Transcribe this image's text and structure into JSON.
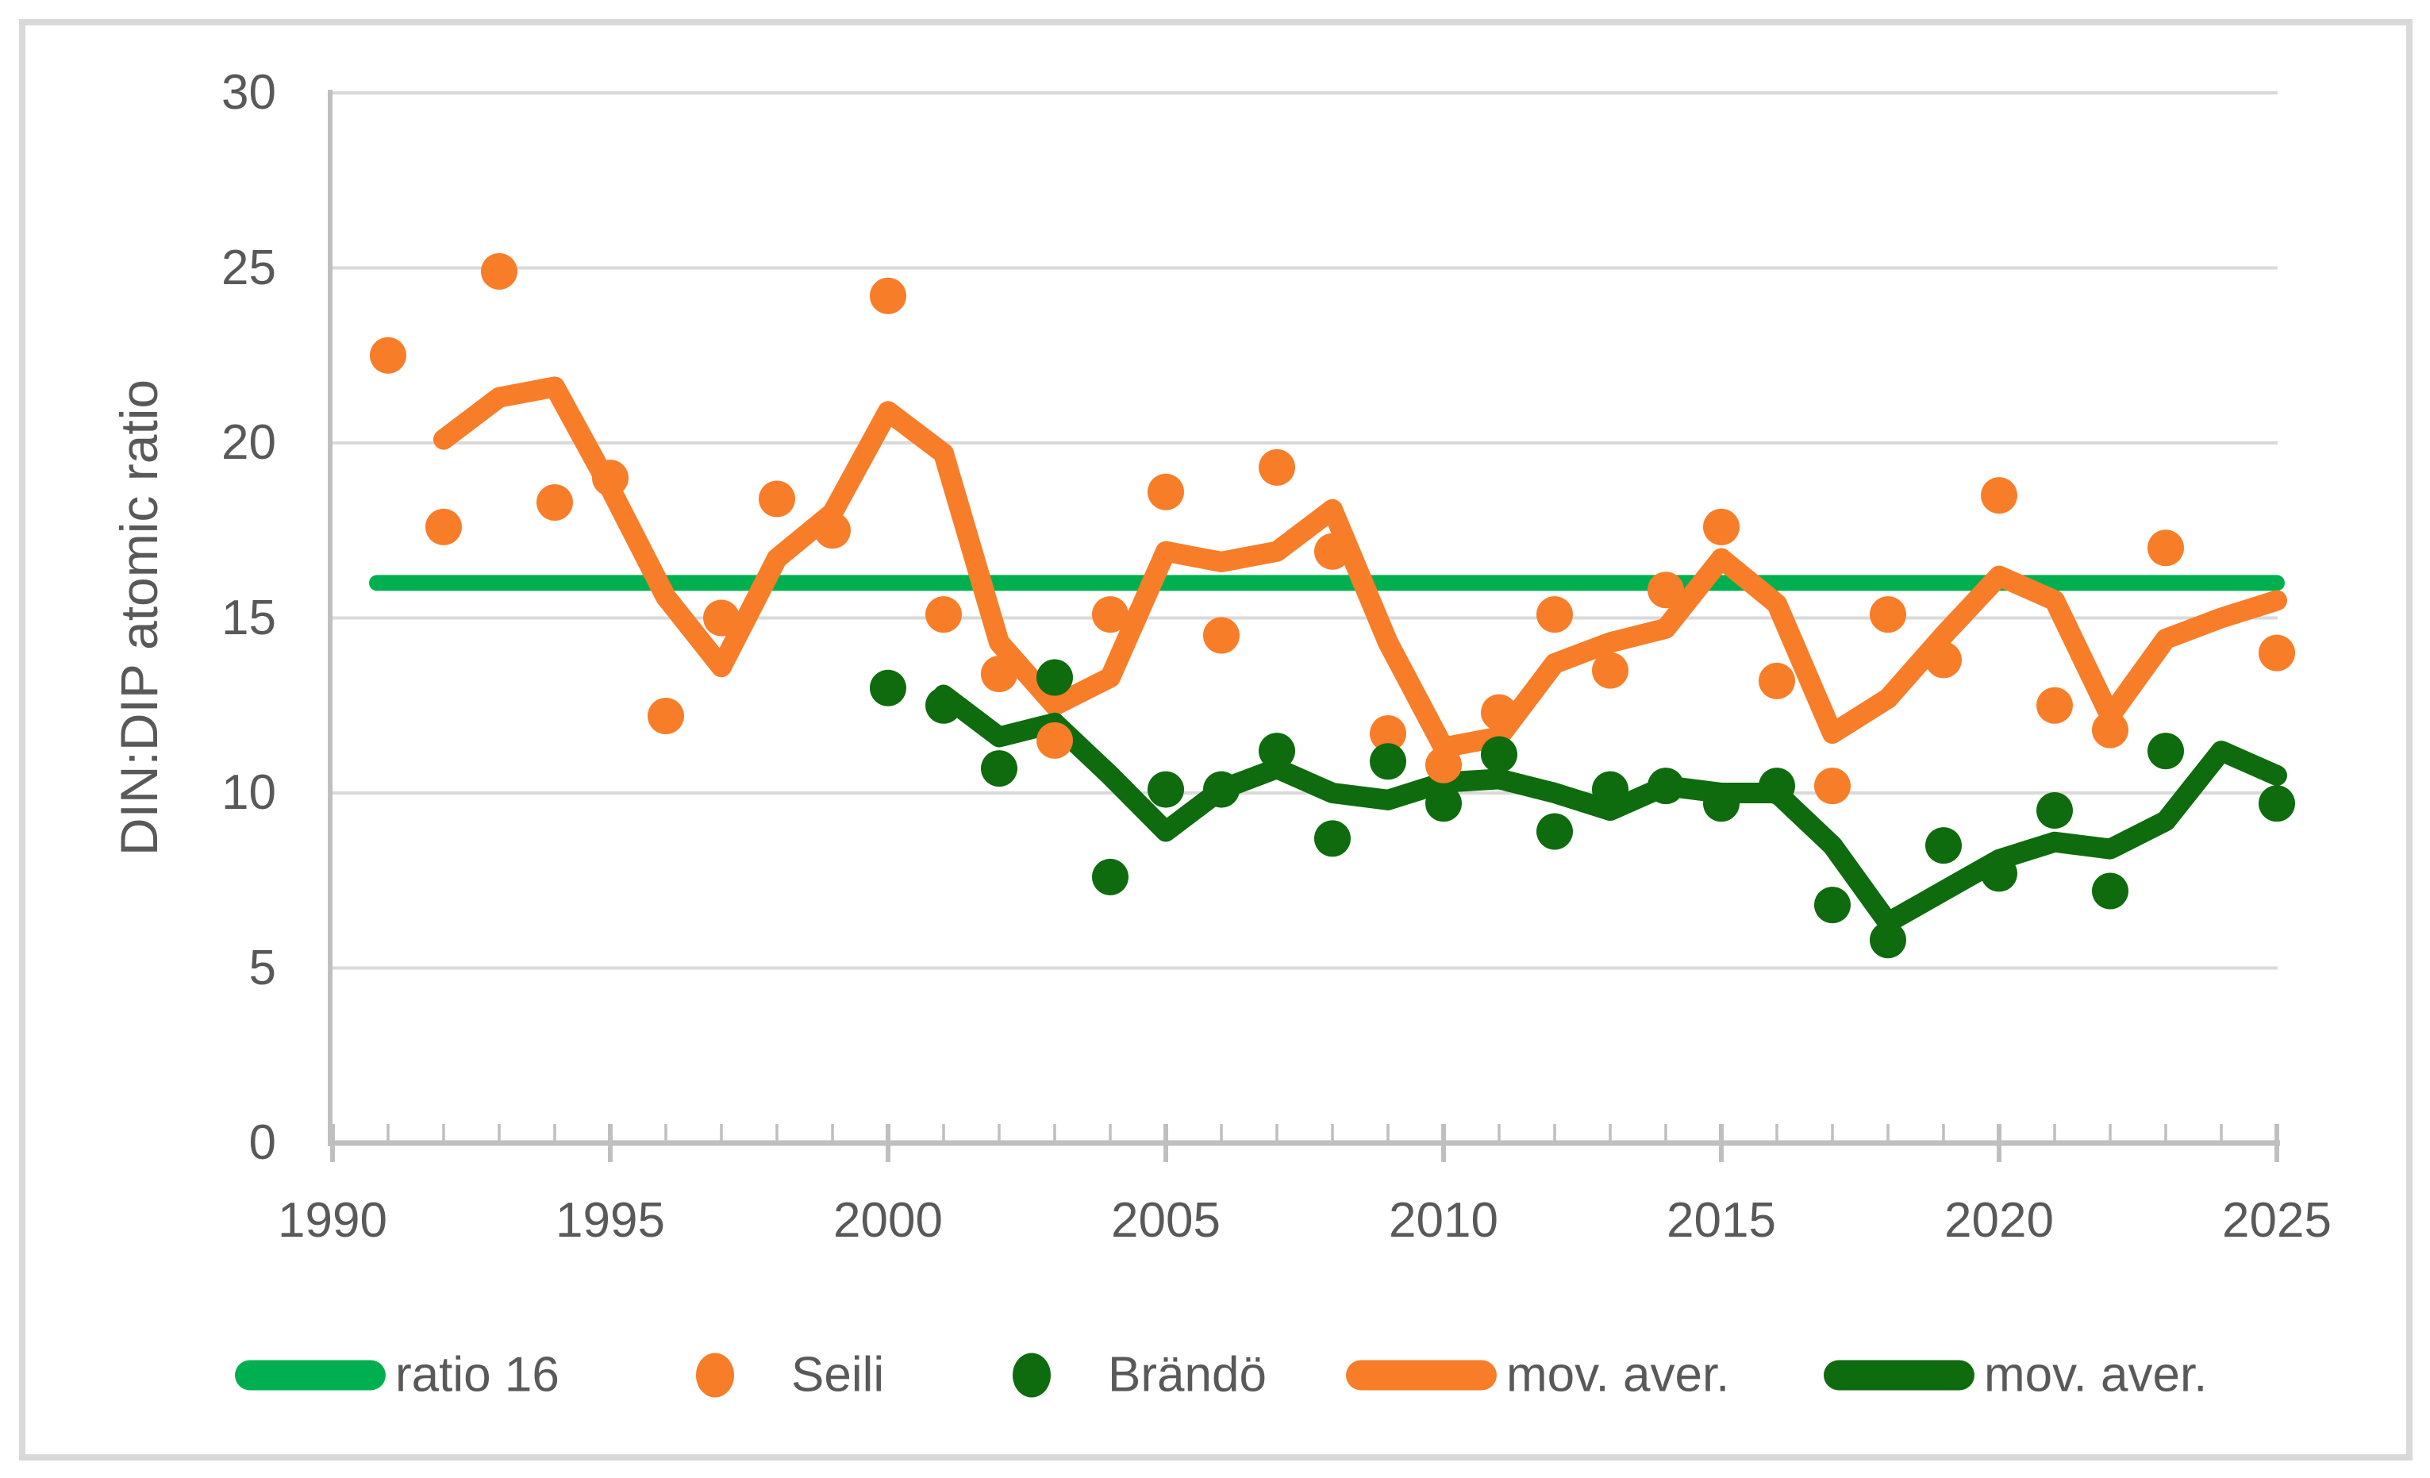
{
  "colors": {
    "orange": "#F87D29",
    "bright_green": "#00B050",
    "dark_green": "#0E6B0E",
    "grid": "#D9D9D9",
    "axis": "#BFBFBF",
    "text": "#595959",
    "background": "#FFFFFF",
    "frame": "#D9D9D9"
  },
  "chart_data": {
    "type": "scatter",
    "title": "",
    "xlabel": "",
    "ylabel": "DIN:DIP atomic ratio",
    "xlim": [
      1990,
      2025.2
    ],
    "ylim": [
      0,
      30
    ],
    "x_ticks": [
      1990,
      1995,
      2000,
      2005,
      2010,
      2015,
      2020,
      2025
    ],
    "y_ticks": [
      0,
      5,
      10,
      15,
      20,
      25,
      30
    ],
    "grid": "horizontal",
    "legend_position": "bottom",
    "series": [
      {
        "name": "ratio 16",
        "type": "line",
        "color_key": "bright_green",
        "stroke_width": 20,
        "x": [
          1990.8,
          2025
        ],
        "y": [
          16,
          16
        ]
      },
      {
        "name": "Seili",
        "type": "scatter",
        "color_key": "orange",
        "marker_radius": 23,
        "x": [
          1991,
          1992,
          1993,
          1994,
          1995,
          1996,
          1997,
          1998,
          1999,
          2000,
          2001,
          2002,
          2003,
          2004,
          2005,
          2006,
          2007,
          2008,
          2009,
          2010,
          2011,
          2012,
          2013,
          2014,
          2015,
          2016,
          2017,
          2018,
          2019,
          2020,
          2021,
          2022,
          2023,
          2025
        ],
        "y": [
          22.5,
          17.6,
          24.9,
          18.3,
          19.0,
          12.2,
          15.0,
          18.4,
          17.5,
          24.2,
          15.1,
          13.4,
          11.5,
          15.1,
          18.6,
          14.5,
          19.3,
          16.9,
          11.7,
          10.8,
          12.3,
          15.1,
          13.5,
          15.8,
          17.6,
          13.2,
          10.2,
          15.1,
          13.8,
          18.5,
          12.5,
          11.8,
          17.0,
          14.0
        ]
      },
      {
        "name": "Brändö",
        "type": "scatter",
        "color_key": "dark_green",
        "marker_radius": 23,
        "x": [
          2000,
          2001,
          2002,
          2003,
          2004,
          2005,
          2006,
          2007,
          2008,
          2009,
          2010,
          2011,
          2012,
          2013,
          2014,
          2015,
          2016,
          2017,
          2018,
          2019,
          2020,
          2021,
          2022,
          2023,
          2025
        ],
        "y": [
          13.0,
          12.5,
          10.7,
          13.3,
          7.6,
          10.1,
          10.1,
          11.2,
          8.7,
          10.9,
          9.7,
          11.1,
          8.9,
          10.1,
          10.2,
          9.7,
          10.2,
          6.8,
          5.8,
          8.5,
          7.7,
          9.5,
          7.2,
          11.2,
          9.7
        ]
      },
      {
        "name": "mov. aver.",
        "type": "line",
        "color_key": "orange",
        "stroke_width": 26,
        "x": [
          1992,
          1993,
          1994,
          1995,
          1996,
          1997,
          1998,
          1999,
          2000,
          2001,
          2002,
          2003,
          2004,
          2005,
          2006,
          2007,
          2008,
          2009,
          2010,
          2011,
          2012,
          2013,
          2014,
          2015,
          2016,
          2017,
          2018,
          2019,
          2020,
          2021,
          2022,
          2023,
          2024,
          2025
        ],
        "y": [
          20.1,
          21.3,
          21.6,
          18.7,
          15.6,
          13.6,
          16.7,
          18.0,
          20.9,
          19.7,
          14.3,
          12.5,
          13.3,
          16.9,
          16.6,
          16.9,
          18.1,
          14.3,
          11.3,
          11.6,
          13.7,
          14.3,
          14.7,
          16.7,
          15.4,
          11.7,
          12.7,
          14.5,
          16.2,
          15.5,
          12.2,
          14.4,
          15.0,
          15.5
        ]
      },
      {
        "name": "mov. aver.",
        "type": "line",
        "color_key": "dark_green",
        "stroke_width": 26,
        "x": [
          2001,
          2002,
          2003,
          2004,
          2005,
          2006,
          2007,
          2008,
          2009,
          2010,
          2011,
          2012,
          2013,
          2014,
          2015,
          2016,
          2017,
          2018,
          2019,
          2020,
          2021,
          2022,
          2023,
          2024,
          2025
        ],
        "y": [
          12.8,
          11.6,
          12.0,
          10.5,
          8.9,
          10.1,
          10.7,
          10.0,
          9.8,
          10.3,
          10.4,
          10.0,
          9.5,
          10.2,
          10.0,
          10.0,
          8.5,
          6.3,
          7.2,
          8.1,
          8.6,
          8.4,
          9.2,
          11.2,
          10.5
        ]
      }
    ]
  },
  "legend": {
    "items": [
      {
        "label": "ratio 16",
        "swatch": "line",
        "color_key": "bright_green"
      },
      {
        "label": "Seili",
        "swatch": "dot",
        "color_key": "orange"
      },
      {
        "label": "Brändö",
        "swatch": "dot",
        "color_key": "dark_green"
      },
      {
        "label": "mov. aver.",
        "swatch": "line",
        "color_key": "orange"
      },
      {
        "label": "mov. aver.",
        "swatch": "line",
        "color_key": "dark_green"
      }
    ]
  }
}
